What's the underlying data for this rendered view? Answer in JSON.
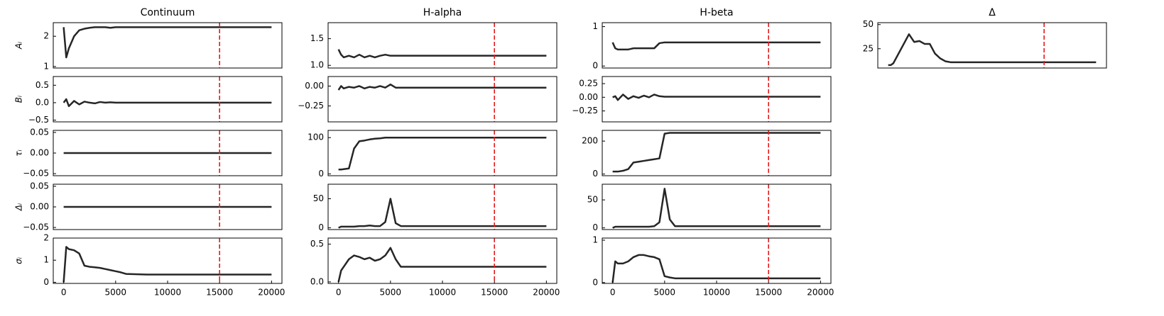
{
  "chart_data": [
    {
      "type": "line",
      "title": "Continuum",
      "ylabel": "Aᵢ",
      "color": "#000000",
      "vline": 15000,
      "vline_color": "#e41a1c",
      "x": [
        0,
        250,
        500,
        1000,
        1500,
        2000,
        2500,
        3000,
        3500,
        4000,
        4500,
        5000,
        5500,
        6000,
        8000,
        10000,
        12000,
        14000,
        16000,
        18000,
        20000
      ],
      "values": [
        2.3,
        1.3,
        1.6,
        2.0,
        2.2,
        2.25,
        2.28,
        2.3,
        2.3,
        2.3,
        2.28,
        2.3,
        2.3,
        2.3,
        2.3,
        2.3,
        2.3,
        2.3,
        2.3,
        2.3,
        2.3
      ],
      "xlim": [
        -1000,
        21000
      ],
      "ylim": [
        0.95,
        2.45
      ],
      "yticks": [
        1,
        2
      ]
    },
    {
      "type": "line",
      "ylabel": "Bᵢ",
      "color": "#000000",
      "vline": 15000,
      "vline_color": "#e41a1c",
      "x": [
        0,
        250,
        500,
        1000,
        1500,
        2000,
        2500,
        3000,
        3500,
        4000,
        4500,
        5000,
        5500,
        6000,
        8000,
        10000,
        12000,
        14000,
        16000,
        18000,
        20000
      ],
      "values": [
        0,
        0.1,
        -0.1,
        0.05,
        -0.05,
        0.03,
        0,
        -0.02,
        0.02,
        0,
        0.01,
        0,
        0,
        0,
        0,
        0,
        0,
        0,
        0,
        0,
        0
      ],
      "xlim": [
        -1000,
        21000
      ],
      "ylim": [
        -0.55,
        0.75
      ],
      "yticks": [
        {
          "value": -0.5,
          "label": "−0.5"
        },
        {
          "value": 0,
          "label": "0.0"
        },
        {
          "value": 0.5,
          "label": "0.5"
        }
      ]
    },
    {
      "type": "line",
      "ylabel": "τᵢ",
      "color": "#000000",
      "vline": 15000,
      "vline_color": "#e41a1c",
      "x": [
        0,
        250,
        500,
        1000,
        1500,
        2000,
        2500,
        3000,
        3500,
        4000,
        4500,
        5000,
        5500,
        6000,
        8000,
        10000,
        12000,
        14000,
        16000,
        18000,
        20000
      ],
      "values": [
        0,
        0,
        0,
        0,
        0,
        0,
        0,
        0,
        0,
        0,
        0,
        0,
        0,
        0,
        0,
        0,
        0,
        0,
        0,
        0,
        0
      ],
      "xlim": [
        -1000,
        21000
      ],
      "ylim": [
        -0.055,
        0.055
      ],
      "yticks": [
        {
          "value": -0.05,
          "label": "−0.05"
        },
        {
          "value": 0,
          "label": "0.00"
        },
        {
          "value": 0.05,
          "label": "0.05"
        }
      ]
    },
    {
      "type": "line",
      "ylabel": "Δᵢ",
      "color": "#000000",
      "vline": 15000,
      "vline_color": "#e41a1c",
      "x": [
        0,
        250,
        500,
        1000,
        1500,
        2000,
        2500,
        3000,
        3500,
        4000,
        4500,
        5000,
        5500,
        6000,
        8000,
        10000,
        12000,
        14000,
        16000,
        18000,
        20000
      ],
      "values": [
        0,
        0,
        0,
        0,
        0,
        0,
        0,
        0,
        0,
        0,
        0,
        0,
        0,
        0,
        0,
        0,
        0,
        0,
        0,
        0,
        0
      ],
      "xlim": [
        -1000,
        21000
      ],
      "ylim": [
        -0.055,
        0.055
      ],
      "yticks": [
        {
          "value": -0.05,
          "label": "−0.05"
        },
        {
          "value": 0,
          "label": "0.00"
        },
        {
          "value": 0.05,
          "label": "0.05"
        }
      ]
    },
    {
      "type": "line",
      "ylabel": "σᵢ",
      "color": "#000000",
      "vline": 15000,
      "vline_color": "#e41a1c",
      "x": [
        0,
        250,
        500,
        1000,
        1500,
        2000,
        2500,
        3000,
        3500,
        4000,
        4500,
        5000,
        5500,
        6000,
        8000,
        10000,
        12000,
        14000,
        16000,
        18000,
        20000
      ],
      "values": [
        0,
        1.6,
        1.5,
        1.45,
        1.3,
        0.75,
        0.7,
        0.68,
        0.65,
        0.6,
        0.55,
        0.5,
        0.45,
        0.38,
        0.35,
        0.35,
        0.35,
        0.35,
        0.35,
        0.35,
        0.35
      ],
      "xlim": [
        -1000,
        21000
      ],
      "ylim": [
        -0.05,
        2.0
      ],
      "yticks": [
        0,
        1,
        2
      ],
      "xticks": [
        0,
        5000,
        10000,
        15000,
        20000
      ]
    },
    {
      "type": "line",
      "title": "H-alpha",
      "color": "#000000",
      "vline": 15000,
      "vline_color": "#e41a1c",
      "x": [
        0,
        250,
        500,
        1000,
        1500,
        2000,
        2500,
        3000,
        3500,
        4000,
        4500,
        5000,
        5500,
        6000,
        8000,
        10000,
        12000,
        14000,
        16000,
        18000,
        20000
      ],
      "values": [
        1.3,
        1.2,
        1.15,
        1.18,
        1.15,
        1.2,
        1.15,
        1.18,
        1.15,
        1.18,
        1.2,
        1.18,
        1.18,
        1.18,
        1.18,
        1.18,
        1.18,
        1.18,
        1.18,
        1.18,
        1.18
      ],
      "xlim": [
        -1000,
        21000
      ],
      "ylim": [
        0.95,
        1.8
      ],
      "yticks": [
        {
          "value": 1,
          "label": "1.0"
        },
        {
          "value": 1.5,
          "label": "1.5"
        }
      ]
    },
    {
      "type": "line",
      "color": "#000000",
      "vline": 15000,
      "vline_color": "#e41a1c",
      "x": [
        0,
        250,
        500,
        1000,
        1500,
        2000,
        2500,
        3000,
        3500,
        4000,
        4500,
        5000,
        5500,
        6000,
        8000,
        10000,
        12000,
        14000,
        16000,
        18000,
        20000
      ],
      "values": [
        -0.05,
        0,
        -0.03,
        -0.01,
        -0.02,
        0,
        -0.03,
        -0.01,
        -0.02,
        0,
        -0.02,
        0.02,
        -0.02,
        -0.02,
        -0.02,
        -0.02,
        -0.02,
        -0.02,
        -0.02,
        -0.02,
        -0.02
      ],
      "xlim": [
        -1000,
        21000
      ],
      "ylim": [
        -0.45,
        0.12
      ],
      "yticks": [
        {
          "value": -0.25,
          "label": "−0.25"
        },
        {
          "value": 0,
          "label": "0.00"
        }
      ]
    },
    {
      "type": "line",
      "color": "#000000",
      "vline": 15000,
      "vline_color": "#e41a1c",
      "x": [
        0,
        250,
        500,
        1000,
        1500,
        2000,
        2500,
        3000,
        3500,
        4000,
        4500,
        5000,
        5500,
        6000,
        8000,
        10000,
        12000,
        14000,
        16000,
        18000,
        20000
      ],
      "values": [
        12,
        12,
        13,
        15,
        70,
        90,
        92,
        95,
        97,
        98,
        100,
        100,
        100,
        100,
        100,
        100,
        100,
        100,
        100,
        100,
        100
      ],
      "xlim": [
        -1000,
        21000
      ],
      "ylim": [
        -5,
        120
      ],
      "yticks": [
        0,
        100
      ]
    },
    {
      "type": "line",
      "color": "#000000",
      "vline": 15000,
      "vline_color": "#e41a1c",
      "x": [
        0,
        250,
        500,
        1000,
        1500,
        2000,
        2500,
        3000,
        3500,
        4000,
        4500,
        5000,
        5500,
        6000,
        8000,
        10000,
        12000,
        14000,
        16000,
        18000,
        20000
      ],
      "values": [
        0,
        2,
        2,
        2,
        2,
        3,
        3,
        4,
        3,
        3,
        10,
        50,
        8,
        3,
        3,
        3,
        3,
        3,
        3,
        3,
        3
      ],
      "xlim": [
        -1000,
        21000
      ],
      "ylim": [
        -3,
        75
      ],
      "yticks": [
        0,
        50
      ]
    },
    {
      "type": "line",
      "color": "#000000",
      "vline": 15000,
      "vline_color": "#e41a1c",
      "x": [
        0,
        250,
        500,
        1000,
        1500,
        2000,
        2500,
        3000,
        3500,
        4000,
        4500,
        5000,
        5500,
        6000,
        8000,
        10000,
        12000,
        14000,
        16000,
        18000,
        20000
      ],
      "values": [
        0,
        0.15,
        0.2,
        0.3,
        0.35,
        0.33,
        0.3,
        0.32,
        0.28,
        0.3,
        0.35,
        0.45,
        0.3,
        0.2,
        0.2,
        0.2,
        0.2,
        0.2,
        0.2,
        0.2,
        0.2
      ],
      "xlim": [
        -1000,
        21000
      ],
      "ylim": [
        -0.02,
        0.58
      ],
      "yticks": [
        {
          "value": 0,
          "label": "0.0"
        },
        {
          "value": 0.5,
          "label": "0.5"
        }
      ],
      "xticks": [
        0,
        5000,
        10000,
        15000,
        20000
      ]
    },
    {
      "type": "line",
      "title": "H-beta",
      "color": "#000000",
      "vline": 15000,
      "vline_color": "#e41a1c",
      "x": [
        0,
        250,
        500,
        1000,
        1500,
        2000,
        2500,
        3000,
        3500,
        4000,
        4500,
        5000,
        5500,
        6000,
        8000,
        10000,
        12000,
        14000,
        16000,
        18000,
        20000
      ],
      "values": [
        0.6,
        0.45,
        0.42,
        0.42,
        0.42,
        0.45,
        0.45,
        0.45,
        0.45,
        0.45,
        0.58,
        0.6,
        0.6,
        0.6,
        0.6,
        0.6,
        0.6,
        0.6,
        0.6,
        0.6,
        0.6
      ],
      "xlim": [
        -1000,
        21000
      ],
      "ylim": [
        -0.05,
        1.1
      ],
      "yticks": [
        0,
        1
      ]
    },
    {
      "type": "line",
      "color": "#000000",
      "vline": 15000,
      "vline_color": "#e41a1c",
      "x": [
        0,
        250,
        500,
        1000,
        1500,
        2000,
        2500,
        3000,
        3500,
        4000,
        4500,
        5000,
        5500,
        6000,
        8000,
        10000,
        12000,
        14000,
        16000,
        18000,
        20000
      ],
      "values": [
        0,
        0.02,
        -0.05,
        0.05,
        -0.03,
        0.02,
        -0.01,
        0.03,
        0,
        0.05,
        0.02,
        0.01,
        0.01,
        0.01,
        0.01,
        0.01,
        0.01,
        0.01,
        0.01,
        0.01,
        0.01
      ],
      "xlim": [
        -1000,
        21000
      ],
      "ylim": [
        -0.45,
        0.38
      ],
      "yticks": [
        {
          "value": -0.25,
          "label": "−0.25"
        },
        {
          "value": 0,
          "label": "0.00"
        },
        {
          "value": 0.25,
          "label": "0.25"
        }
      ]
    },
    {
      "type": "line",
      "color": "#000000",
      "vline": 15000,
      "vline_color": "#e41a1c",
      "x": [
        0,
        250,
        500,
        1000,
        1500,
        2000,
        2500,
        3000,
        3500,
        4000,
        4500,
        5000,
        5500,
        6000,
        8000,
        10000,
        12000,
        14000,
        16000,
        18000,
        20000
      ],
      "values": [
        15,
        15,
        15,
        20,
        30,
        70,
        75,
        80,
        85,
        90,
        95,
        245,
        250,
        250,
        250,
        250,
        250,
        250,
        250,
        250,
        250
      ],
      "xlim": [
        -1000,
        21000
      ],
      "ylim": [
        -10,
        265
      ],
      "yticks": [
        0,
        200
      ]
    },
    {
      "type": "line",
      "color": "#000000",
      "vline": 15000,
      "vline_color": "#e41a1c",
      "x": [
        0,
        250,
        500,
        1000,
        1500,
        2000,
        2500,
        3000,
        3500,
        4000,
        4500,
        5000,
        5500,
        6000,
        8000,
        10000,
        12000,
        14000,
        16000,
        18000,
        20000
      ],
      "values": [
        0,
        2,
        2,
        2,
        2,
        2,
        2,
        2,
        2,
        3,
        10,
        70,
        15,
        3,
        3,
        3,
        3,
        3,
        3,
        3,
        3
      ],
      "xlim": [
        -1000,
        21000
      ],
      "ylim": [
        -3,
        78
      ],
      "yticks": [
        0,
        50
      ]
    },
    {
      "type": "line",
      "color": "#000000",
      "vline": 15000,
      "vline_color": "#e41a1c",
      "x": [
        0,
        250,
        500,
        1000,
        1500,
        2000,
        2500,
        3000,
        3500,
        4000,
        4500,
        5000,
        5500,
        6000,
        8000,
        10000,
        12000,
        14000,
        16000,
        18000,
        20000
      ],
      "values": [
        0,
        0.5,
        0.45,
        0.45,
        0.5,
        0.6,
        0.65,
        0.65,
        0.62,
        0.6,
        0.55,
        0.15,
        0.12,
        0.1,
        0.1,
        0.1,
        0.1,
        0.1,
        0.1,
        0.1,
        0.1
      ],
      "xlim": [
        -1000,
        21000
      ],
      "ylim": [
        -0.02,
        1.05
      ],
      "yticks": [
        0,
        1
      ],
      "xticks": [
        0,
        5000,
        10000,
        15000,
        20000
      ]
    },
    {
      "type": "line",
      "title": "Δ",
      "color": "#000000",
      "vline": 15000,
      "vline_color": "#e41a1c",
      "x": [
        0,
        250,
        500,
        1000,
        1500,
        2000,
        2500,
        3000,
        3500,
        4000,
        4500,
        5000,
        5500,
        6000,
        8000,
        10000,
        12000,
        14000,
        16000,
        18000,
        20000
      ],
      "values": [
        8,
        8,
        10,
        20,
        30,
        40,
        32,
        33,
        30,
        30,
        20,
        15,
        12,
        11,
        11,
        11,
        11,
        11,
        11,
        11,
        11
      ],
      "xlim": [
        -1000,
        21000
      ],
      "ylim": [
        5,
        52
      ],
      "yticks": [
        25,
        50
      ]
    }
  ]
}
